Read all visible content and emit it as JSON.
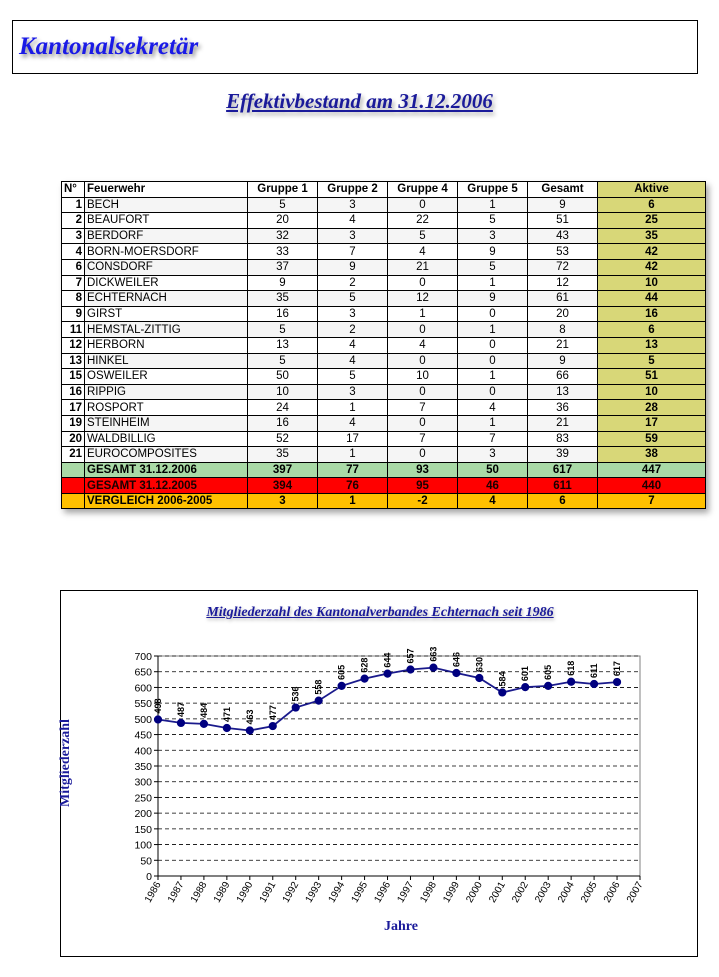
{
  "header": {
    "title": "Kantonalsekretär"
  },
  "subtitle": "Effektivbestand am 31.12.2006",
  "table": {
    "headers": [
      "N°",
      "Feuerwehr",
      "Gruppe 1",
      "Gruppe 2",
      "Gruppe 4",
      "Gruppe 5",
      "Gesamt",
      "Aktive"
    ],
    "rows": [
      [
        "1",
        "BECH",
        "5",
        "3",
        "0",
        "1",
        "9",
        "6"
      ],
      [
        "2",
        "BEAUFORT",
        "20",
        "4",
        "22",
        "5",
        "51",
        "25"
      ],
      [
        "3",
        "BERDORF",
        "32",
        "3",
        "5",
        "3",
        "43",
        "35"
      ],
      [
        "4",
        "BORN-MOERSDORF",
        "33",
        "7",
        "4",
        "9",
        "53",
        "42"
      ],
      [
        "6",
        "CONSDORF",
        "37",
        "9",
        "21",
        "5",
        "72",
        "42"
      ],
      [
        "7",
        "DICKWEILER",
        "9",
        "2",
        "0",
        "1",
        "12",
        "10"
      ],
      [
        "8",
        "ECHTERNACH",
        "35",
        "5",
        "12",
        "9",
        "61",
        "44"
      ],
      [
        "9",
        "GIRST",
        "16",
        "3",
        "1",
        "0",
        "20",
        "16"
      ],
      [
        "11",
        "HEMSTAL-ZITTIG",
        "5",
        "2",
        "0",
        "1",
        "8",
        "6"
      ],
      [
        "12",
        "HERBORN",
        "13",
        "4",
        "4",
        "0",
        "21",
        "13"
      ],
      [
        "13",
        "HINKEL",
        "5",
        "4",
        "0",
        "0",
        "9",
        "5"
      ],
      [
        "15",
        "OSWEILER",
        "50",
        "5",
        "10",
        "1",
        "66",
        "51"
      ],
      [
        "16",
        "RIPPIG",
        "10",
        "3",
        "0",
        "0",
        "13",
        "10"
      ],
      [
        "17",
        "ROSPORT",
        "24",
        "1",
        "7",
        "4",
        "36",
        "28"
      ],
      [
        "19",
        "STEINHEIM",
        "16",
        "4",
        "0",
        "1",
        "21",
        "17"
      ],
      [
        "20",
        "WALDBILLIG",
        "52",
        "17",
        "7",
        "7",
        "83",
        "59"
      ],
      [
        "21",
        "EUROCOMPOSITES",
        "35",
        "1",
        "0",
        "3",
        "39",
        "38"
      ]
    ],
    "total_2006": {
      "label": "GESAMT 31.12.2006",
      "values": [
        "397",
        "77",
        "93",
        "50",
        "617",
        "447"
      ]
    },
    "total_2005": {
      "label": "GESAMT 31.12.2005",
      "values": [
        "394",
        "76",
        "95",
        "46",
        "611",
        "440"
      ]
    },
    "comparison": {
      "label": "VERGLEICH 2006-2005",
      "values": [
        "3",
        "1",
        "-2",
        "4",
        "6",
        "7"
      ]
    }
  },
  "chart_data": {
    "type": "line",
    "title": "Mitgliederzahl des Kantonalverbandes Echternach seit 1986",
    "xlabel": "Jahre",
    "ylabel": "Mitgliederzahl",
    "categories": [
      "1986",
      "1987",
      "1988",
      "1989",
      "1990",
      "1991",
      "1992",
      "1993",
      "1994",
      "1995",
      "1996",
      "1997",
      "1998",
      "1999",
      "2000",
      "2001",
      "2002",
      "2003",
      "2004",
      "2005",
      "2006",
      "2007"
    ],
    "series": [
      {
        "values": [
          498,
          487,
          484,
          471,
          463,
          477,
          536,
          558,
          605,
          628,
          644,
          657,
          663,
          646,
          630,
          584,
          601,
          605,
          618,
          611,
          617,
          null
        ]
      }
    ],
    "ylim": [
      0,
      700
    ],
    "yticks": [
      0,
      50,
      100,
      150,
      200,
      250,
      300,
      350,
      400,
      450,
      500,
      550,
      600,
      650,
      700
    ],
    "grid": true,
    "line_color": "#1a1a8c"
  }
}
